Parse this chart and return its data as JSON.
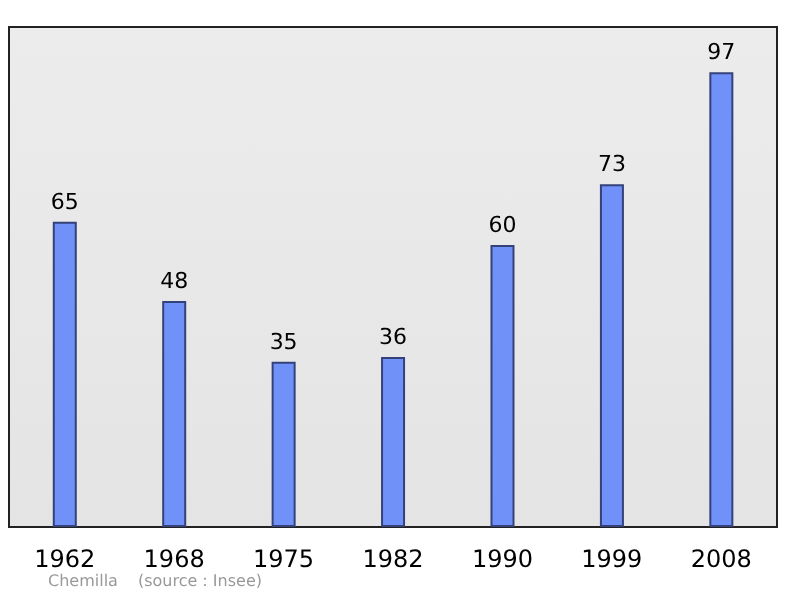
{
  "chart_data": {
    "type": "bar",
    "categories": [
      "1962",
      "1968",
      "1975",
      "1982",
      "1990",
      "1999",
      "2008"
    ],
    "values": [
      65,
      48,
      35,
      36,
      60,
      73,
      97
    ],
    "color": "#7092f8",
    "data_labels": true,
    "annotations": [
      "Chemilla",
      "(source : Insee)"
    ]
  }
}
